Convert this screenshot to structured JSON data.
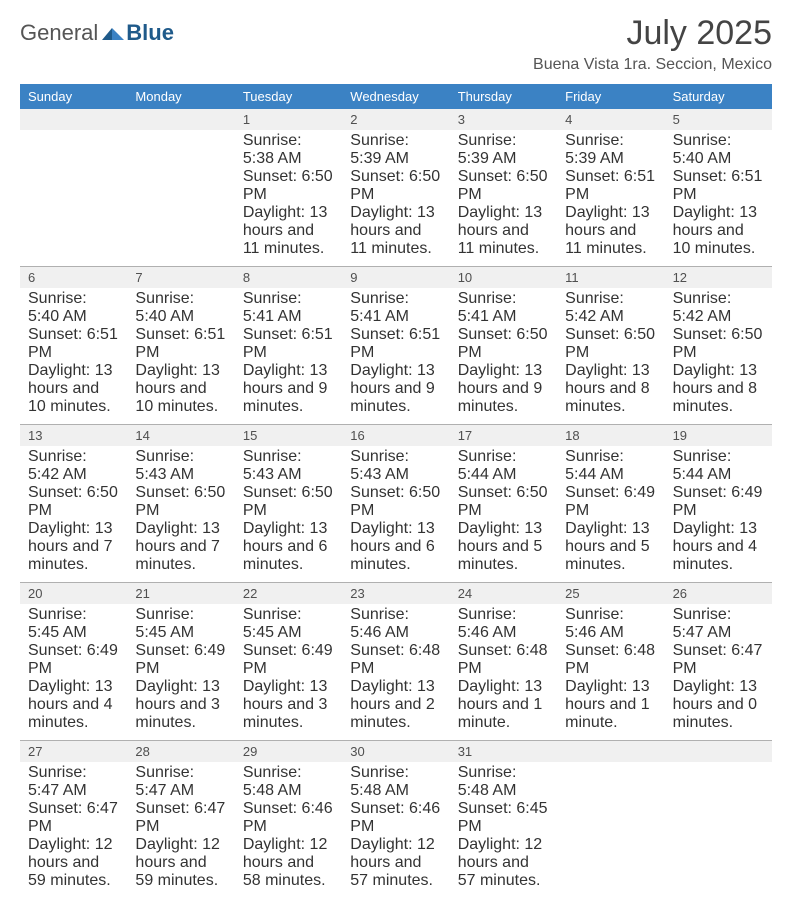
{
  "brand": {
    "part1": "General",
    "part2": "Blue"
  },
  "colors": {
    "header_blue": "#3b82c4",
    "accent_blue": "#1f5a8a",
    "light_stripe": "#f0f0f0",
    "divider": "#b0b0b0"
  },
  "title": "July 2025",
  "location": "Buena Vista 1ra. Seccion, Mexico",
  "dayHeaders": [
    "Sunday",
    "Monday",
    "Tuesday",
    "Wednesday",
    "Thursday",
    "Friday",
    "Saturday"
  ],
  "weeks": [
    [
      {
        "n": "",
        "sr": "",
        "ss": "",
        "dl": ""
      },
      {
        "n": "",
        "sr": "",
        "ss": "",
        "dl": ""
      },
      {
        "n": "1",
        "sr": "Sunrise: 5:38 AM",
        "ss": "Sunset: 6:50 PM",
        "dl": "Daylight: 13 hours and 11 minutes."
      },
      {
        "n": "2",
        "sr": "Sunrise: 5:39 AM",
        "ss": "Sunset: 6:50 PM",
        "dl": "Daylight: 13 hours and 11 minutes."
      },
      {
        "n": "3",
        "sr": "Sunrise: 5:39 AM",
        "ss": "Sunset: 6:50 PM",
        "dl": "Daylight: 13 hours and 11 minutes."
      },
      {
        "n": "4",
        "sr": "Sunrise: 5:39 AM",
        "ss": "Sunset: 6:51 PM",
        "dl": "Daylight: 13 hours and 11 minutes."
      },
      {
        "n": "5",
        "sr": "Sunrise: 5:40 AM",
        "ss": "Sunset: 6:51 PM",
        "dl": "Daylight: 13 hours and 10 minutes."
      }
    ],
    [
      {
        "n": "6",
        "sr": "Sunrise: 5:40 AM",
        "ss": "Sunset: 6:51 PM",
        "dl": "Daylight: 13 hours and 10 minutes."
      },
      {
        "n": "7",
        "sr": "Sunrise: 5:40 AM",
        "ss": "Sunset: 6:51 PM",
        "dl": "Daylight: 13 hours and 10 minutes."
      },
      {
        "n": "8",
        "sr": "Sunrise: 5:41 AM",
        "ss": "Sunset: 6:51 PM",
        "dl": "Daylight: 13 hours and 9 minutes."
      },
      {
        "n": "9",
        "sr": "Sunrise: 5:41 AM",
        "ss": "Sunset: 6:51 PM",
        "dl": "Daylight: 13 hours and 9 minutes."
      },
      {
        "n": "10",
        "sr": "Sunrise: 5:41 AM",
        "ss": "Sunset: 6:50 PM",
        "dl": "Daylight: 13 hours and 9 minutes."
      },
      {
        "n": "11",
        "sr": "Sunrise: 5:42 AM",
        "ss": "Sunset: 6:50 PM",
        "dl": "Daylight: 13 hours and 8 minutes."
      },
      {
        "n": "12",
        "sr": "Sunrise: 5:42 AM",
        "ss": "Sunset: 6:50 PM",
        "dl": "Daylight: 13 hours and 8 minutes."
      }
    ],
    [
      {
        "n": "13",
        "sr": "Sunrise: 5:42 AM",
        "ss": "Sunset: 6:50 PM",
        "dl": "Daylight: 13 hours and 7 minutes."
      },
      {
        "n": "14",
        "sr": "Sunrise: 5:43 AM",
        "ss": "Sunset: 6:50 PM",
        "dl": "Daylight: 13 hours and 7 minutes."
      },
      {
        "n": "15",
        "sr": "Sunrise: 5:43 AM",
        "ss": "Sunset: 6:50 PM",
        "dl": "Daylight: 13 hours and 6 minutes."
      },
      {
        "n": "16",
        "sr": "Sunrise: 5:43 AM",
        "ss": "Sunset: 6:50 PM",
        "dl": "Daylight: 13 hours and 6 minutes."
      },
      {
        "n": "17",
        "sr": "Sunrise: 5:44 AM",
        "ss": "Sunset: 6:50 PM",
        "dl": "Daylight: 13 hours and 5 minutes."
      },
      {
        "n": "18",
        "sr": "Sunrise: 5:44 AM",
        "ss": "Sunset: 6:49 PM",
        "dl": "Daylight: 13 hours and 5 minutes."
      },
      {
        "n": "19",
        "sr": "Sunrise: 5:44 AM",
        "ss": "Sunset: 6:49 PM",
        "dl": "Daylight: 13 hours and 4 minutes."
      }
    ],
    [
      {
        "n": "20",
        "sr": "Sunrise: 5:45 AM",
        "ss": "Sunset: 6:49 PM",
        "dl": "Daylight: 13 hours and 4 minutes."
      },
      {
        "n": "21",
        "sr": "Sunrise: 5:45 AM",
        "ss": "Sunset: 6:49 PM",
        "dl": "Daylight: 13 hours and 3 minutes."
      },
      {
        "n": "22",
        "sr": "Sunrise: 5:45 AM",
        "ss": "Sunset: 6:49 PM",
        "dl": "Daylight: 13 hours and 3 minutes."
      },
      {
        "n": "23",
        "sr": "Sunrise: 5:46 AM",
        "ss": "Sunset: 6:48 PM",
        "dl": "Daylight: 13 hours and 2 minutes."
      },
      {
        "n": "24",
        "sr": "Sunrise: 5:46 AM",
        "ss": "Sunset: 6:48 PM",
        "dl": "Daylight: 13 hours and 1 minute."
      },
      {
        "n": "25",
        "sr": "Sunrise: 5:46 AM",
        "ss": "Sunset: 6:48 PM",
        "dl": "Daylight: 13 hours and 1 minute."
      },
      {
        "n": "26",
        "sr": "Sunrise: 5:47 AM",
        "ss": "Sunset: 6:47 PM",
        "dl": "Daylight: 13 hours and 0 minutes."
      }
    ],
    [
      {
        "n": "27",
        "sr": "Sunrise: 5:47 AM",
        "ss": "Sunset: 6:47 PM",
        "dl": "Daylight: 12 hours and 59 minutes."
      },
      {
        "n": "28",
        "sr": "Sunrise: 5:47 AM",
        "ss": "Sunset: 6:47 PM",
        "dl": "Daylight: 12 hours and 59 minutes."
      },
      {
        "n": "29",
        "sr": "Sunrise: 5:48 AM",
        "ss": "Sunset: 6:46 PM",
        "dl": "Daylight: 12 hours and 58 minutes."
      },
      {
        "n": "30",
        "sr": "Sunrise: 5:48 AM",
        "ss": "Sunset: 6:46 PM",
        "dl": "Daylight: 12 hours and 57 minutes."
      },
      {
        "n": "31",
        "sr": "Sunrise: 5:48 AM",
        "ss": "Sunset: 6:45 PM",
        "dl": "Daylight: 12 hours and 57 minutes."
      },
      {
        "n": "",
        "sr": "",
        "ss": "",
        "dl": ""
      },
      {
        "n": "",
        "sr": "",
        "ss": "",
        "dl": ""
      }
    ]
  ]
}
